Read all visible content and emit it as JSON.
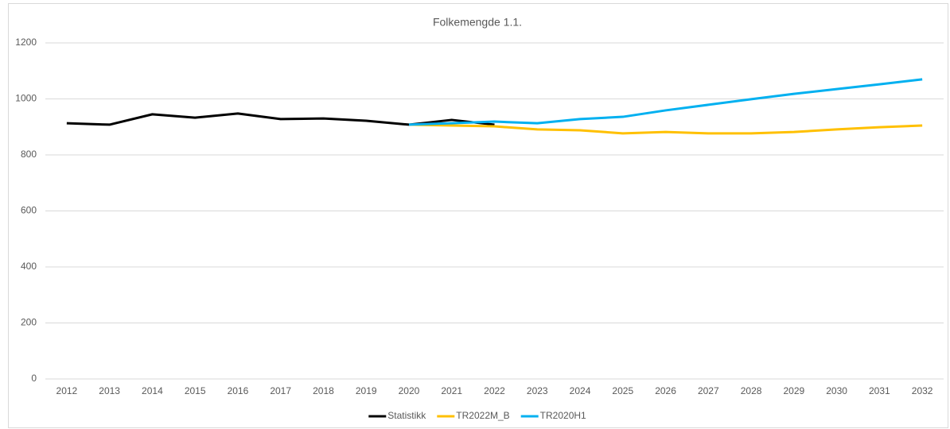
{
  "chart_data": {
    "type": "line",
    "title": "Folkemengde 1.1.",
    "categories": [
      "2012",
      "2013",
      "2014",
      "2015",
      "2016",
      "2017",
      "2018",
      "2019",
      "2020",
      "2021",
      "2022",
      "2023",
      "2024",
      "2025",
      "2026",
      "2027",
      "2028",
      "2029",
      "2030",
      "2031",
      "2032"
    ],
    "series": [
      {
        "name": "Statistikk",
        "color": "#000000",
        "values": [
          913,
          908,
          945,
          933,
          948,
          928,
          930,
          922,
          908,
          925,
          908,
          null,
          null,
          null,
          null,
          null,
          null,
          null,
          null,
          null,
          null
        ]
      },
      {
        "name": "TR2022M_B",
        "color": "#ffc000",
        "values": [
          null,
          null,
          null,
          null,
          null,
          null,
          null,
          null,
          908,
          905,
          902,
          891,
          888,
          877,
          882,
          877,
          877,
          882,
          891,
          899,
          905
        ]
      },
      {
        "name": "TR2020H1",
        "color": "#00b0f0",
        "values": [
          null,
          null,
          null,
          null,
          null,
          null,
          null,
          null,
          908,
          913,
          919,
          913,
          928,
          936,
          959,
          979,
          999,
          1018,
          1035,
          1052,
          1070
        ]
      }
    ],
    "ylim": [
      0,
      1200
    ],
    "yticks": [
      0,
      200,
      400,
      600,
      800,
      1000,
      1200
    ],
    "grid": true,
    "legend": "bottom"
  }
}
